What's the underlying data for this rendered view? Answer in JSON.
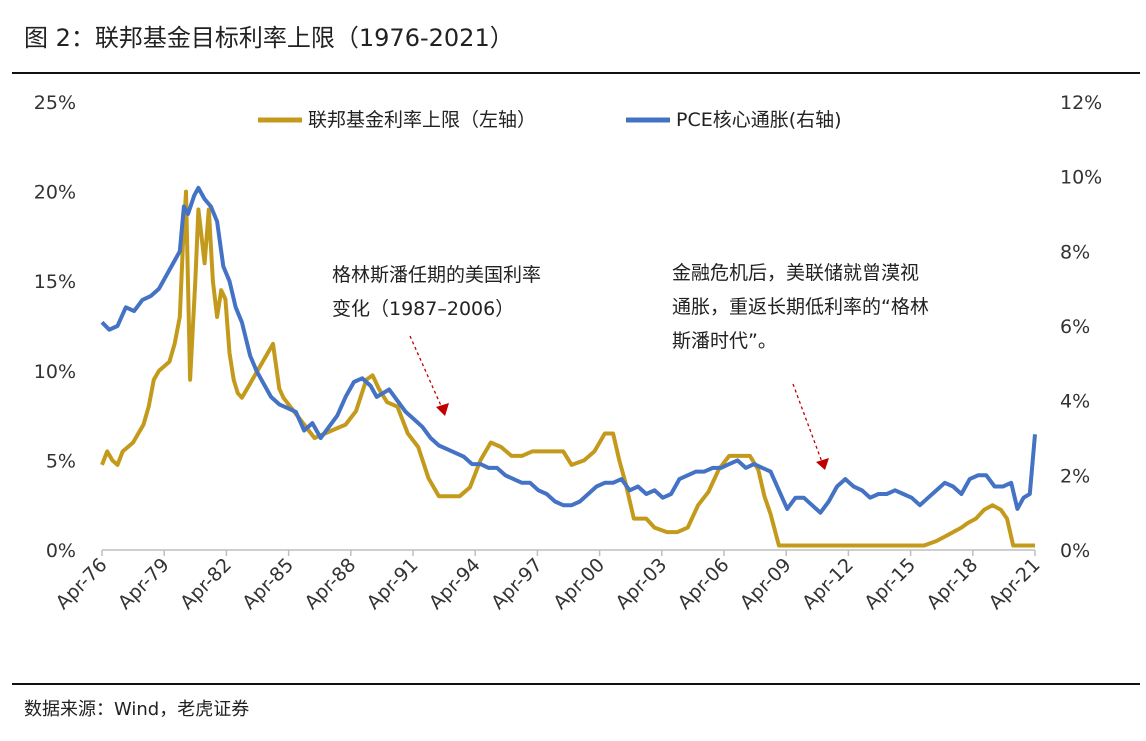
{
  "title": "图 2：联邦基金目标利率上限（1976-2021）",
  "source": "数据来源：Wind，老虎证券",
  "annotations": [
    {
      "lines": [
        "格林斯潘任期的美国利率",
        "变化（1987–2006）"
      ]
    },
    {
      "lines": [
        "金融危机后，美联储就曾漠视",
        "通胀，重返长期低利率的“格林",
        "斯潘时代”。"
      ]
    }
  ],
  "colors": {
    "fed": "#C49A1C",
    "pce": "#4472C4",
    "arrow": "#C00000"
  },
  "chart_data": {
    "type": "line",
    "x_tick_labels": [
      "Apr-76",
      "Apr-79",
      "Apr-82",
      "Apr-85",
      "Apr-88",
      "Apr-91",
      "Apr-94",
      "Apr-97",
      "Apr-00",
      "Apr-03",
      "Apr-06",
      "Apr-09",
      "Apr-12",
      "Apr-15",
      "Apr-18",
      "Apr-21"
    ],
    "x_range": [
      1976.25,
      2021.25
    ],
    "left_axis": {
      "ylim": [
        0,
        25
      ],
      "ticks": [
        "0%",
        "5%",
        "10%",
        "15%",
        "20%",
        "25%"
      ]
    },
    "right_axis": {
      "ylim": [
        0,
        12
      ],
      "ticks": [
        "0%",
        "2%",
        "4%",
        "6%",
        "8%",
        "10%",
        "12%"
      ]
    },
    "legend_position": "top",
    "series": [
      {
        "name": "联邦基金利率上限（左轴）",
        "axis": "left",
        "x": [
          1976.25,
          1976.5,
          1976.75,
          1977.0,
          1977.25,
          1977.5,
          1977.75,
          1978.0,
          1978.25,
          1978.5,
          1978.75,
          1979.0,
          1979.25,
          1979.5,
          1979.75,
          1980.0,
          1980.15,
          1980.3,
          1980.5,
          1980.75,
          1980.9,
          1981.0,
          1981.2,
          1981.4,
          1981.6,
          1981.8,
          1982.0,
          1982.2,
          1982.4,
          1982.6,
          1982.8,
          1983.0,
          1983.5,
          1984.0,
          1984.5,
          1984.8,
          1985.0,
          1985.5,
          1986.0,
          1986.5,
          1987.0,
          1987.5,
          1988.0,
          1988.5,
          1989.0,
          1989.3,
          1989.6,
          1990.0,
          1990.5,
          1991.0,
          1991.5,
          1992.0,
          1992.5,
          1993.0,
          1993.5,
          1994.0,
          1994.5,
          1995.0,
          1995.5,
          1996.0,
          1996.5,
          1997.0,
          1997.5,
          1998.0,
          1998.5,
          1998.9,
          1999.5,
          2000.0,
          2000.5,
          2000.9,
          2001.2,
          2001.5,
          2001.9,
          2002.5,
          2002.9,
          2003.5,
          2004.0,
          2004.5,
          2005.0,
          2005.5,
          2006.0,
          2006.5,
          2007.0,
          2007.5,
          2007.9,
          2008.2,
          2008.5,
          2008.9,
          2009.5,
          2010.0,
          2012.0,
          2014.0,
          2015.9,
          2016.5,
          2016.9,
          2017.3,
          2017.7,
          2018.0,
          2018.4,
          2018.8,
          2019.2,
          2019.6,
          2019.9,
          2020.2,
          2021.25
        ],
        "values": [
          4.75,
          5.5,
          5.0,
          4.75,
          5.5,
          5.75,
          6.0,
          6.5,
          7.0,
          8.0,
          9.5,
          10.0,
          10.25,
          10.5,
          11.5,
          13.0,
          17.0,
          20.0,
          9.5,
          15.0,
          19.0,
          18.0,
          16.0,
          19.0,
          15.0,
          13.0,
          14.5,
          14.0,
          11.0,
          9.5,
          8.75,
          8.5,
          9.5,
          10.5,
          11.5,
          9.0,
          8.5,
          7.75,
          7.0,
          6.25,
          6.5,
          6.75,
          7.0,
          7.75,
          9.5,
          9.75,
          9.0,
          8.25,
          8.0,
          6.5,
          5.75,
          4.0,
          3.0,
          3.0,
          3.0,
          3.5,
          5.0,
          6.0,
          5.75,
          5.25,
          5.25,
          5.5,
          5.5,
          5.5,
          5.5,
          4.75,
          5.0,
          5.5,
          6.5,
          6.5,
          5.0,
          3.75,
          1.75,
          1.75,
          1.25,
          1.0,
          1.0,
          1.25,
          2.5,
          3.25,
          4.5,
          5.25,
          5.25,
          5.25,
          4.5,
          3.0,
          2.0,
          0.25,
          0.25,
          0.25,
          0.25,
          0.25,
          0.25,
          0.5,
          0.75,
          1.0,
          1.25,
          1.5,
          1.75,
          2.25,
          2.5,
          2.25,
          1.75,
          0.25,
          0.25
        ]
      },
      {
        "name": "PCE核心通胀(右轴)",
        "axis": "right",
        "x": [
          1976.25,
          1976.6,
          1977.0,
          1977.4,
          1977.8,
          1978.2,
          1978.6,
          1979.0,
          1979.5,
          1980.0,
          1980.2,
          1980.4,
          1980.7,
          1980.9,
          1981.2,
          1981.5,
          1981.8,
          1982.1,
          1982.4,
          1982.7,
          1983.0,
          1983.4,
          1983.7,
          1984.0,
          1984.4,
          1984.8,
          1985.2,
          1985.6,
          1986.0,
          1986.4,
          1986.8,
          1987.2,
          1987.6,
          1988.0,
          1988.4,
          1988.8,
          1989.2,
          1989.5,
          1989.8,
          1990.1,
          1990.5,
          1990.9,
          1991.3,
          1991.7,
          1992.1,
          1992.5,
          1992.9,
          1993.3,
          1993.7,
          1994.1,
          1994.5,
          1994.9,
          1995.3,
          1995.7,
          1996.1,
          1996.5,
          1996.9,
          1997.3,
          1997.7,
          1998.1,
          1998.5,
          1998.9,
          1999.3,
          1999.7,
          2000.1,
          2000.5,
          2000.9,
          2001.3,
          2001.7,
          2002.1,
          2002.5,
          2002.9,
          2003.3,
          2003.7,
          2004.1,
          2004.5,
          2004.9,
          2005.3,
          2005.7,
          2006.1,
          2006.5,
          2006.9,
          2007.3,
          2007.7,
          2008.1,
          2008.5,
          2008.9,
          2009.3,
          2009.7,
          2010.1,
          2010.5,
          2010.9,
          2011.3,
          2011.7,
          2012.1,
          2012.5,
          2012.9,
          2013.3,
          2013.7,
          2014.1,
          2014.5,
          2014.9,
          2015.3,
          2015.7,
          2016.1,
          2016.5,
          2016.9,
          2017.3,
          2017.7,
          2018.1,
          2018.5,
          2018.9,
          2019.3,
          2019.7,
          2020.1,
          2020.4,
          2020.7,
          2021.0,
          2021.25
        ],
        "values": [
          6.1,
          5.9,
          6.0,
          6.5,
          6.4,
          6.7,
          6.8,
          7.0,
          7.5,
          8.0,
          9.2,
          9.0,
          9.5,
          9.7,
          9.4,
          9.2,
          8.8,
          7.6,
          7.2,
          6.5,
          6.1,
          5.2,
          4.8,
          4.5,
          4.1,
          3.9,
          3.8,
          3.7,
          3.2,
          3.4,
          3.0,
          3.3,
          3.6,
          4.1,
          4.5,
          4.6,
          4.4,
          4.1,
          4.2,
          4.3,
          4.0,
          3.7,
          3.5,
          3.3,
          3.0,
          2.8,
          2.7,
          2.6,
          2.5,
          2.3,
          2.3,
          2.2,
          2.2,
          2.0,
          1.9,
          1.8,
          1.8,
          1.6,
          1.5,
          1.3,
          1.2,
          1.2,
          1.3,
          1.5,
          1.7,
          1.8,
          1.8,
          1.9,
          1.6,
          1.7,
          1.5,
          1.6,
          1.4,
          1.5,
          1.9,
          2.0,
          2.1,
          2.1,
          2.2,
          2.2,
          2.3,
          2.4,
          2.2,
          2.3,
          2.2,
          2.1,
          1.6,
          1.1,
          1.4,
          1.4,
          1.2,
          1.0,
          1.3,
          1.7,
          1.9,
          1.7,
          1.6,
          1.4,
          1.5,
          1.5,
          1.6,
          1.5,
          1.4,
          1.2,
          1.4,
          1.6,
          1.8,
          1.7,
          1.5,
          1.9,
          2.0,
          2.0,
          1.7,
          1.7,
          1.8,
          1.1,
          1.4,
          1.5,
          3.1
        ]
      }
    ]
  }
}
